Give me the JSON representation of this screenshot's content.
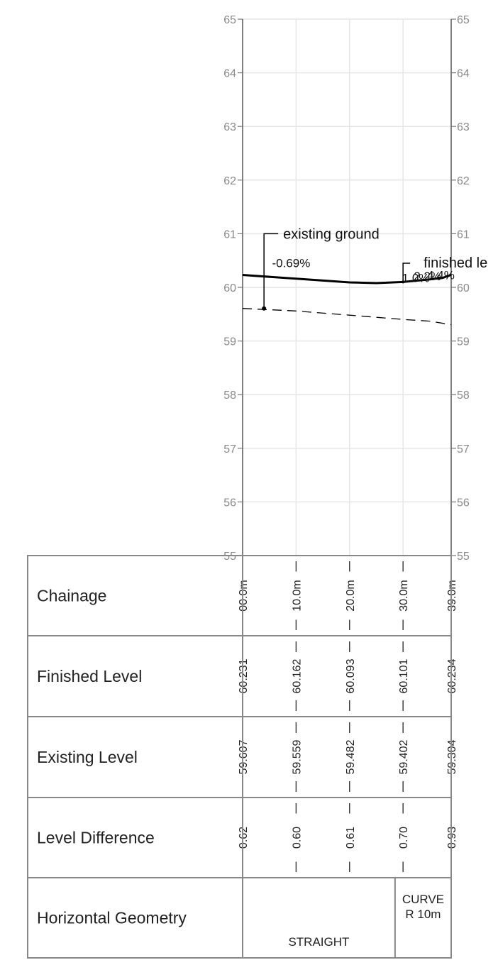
{
  "chart_data": {
    "type": "line",
    "title": "",
    "xlabel": "",
    "ylabel": "",
    "x_range": [
      0,
      39
    ],
    "ylim": [
      55,
      65
    ],
    "y_ticks": [
      55,
      56,
      57,
      58,
      59,
      60,
      61,
      62,
      63,
      64,
      65
    ],
    "grid": true,
    "series": [
      {
        "name": "finished level",
        "style": "solid",
        "color": "#000000",
        "x": [
          0,
          10,
          20,
          25,
          30,
          35,
          37.5,
          39
        ],
        "y": [
          60.231,
          60.162,
          60.093,
          60.08,
          60.101,
          60.15,
          60.18,
          60.234
        ]
      },
      {
        "name": "existing ground",
        "style": "dashed",
        "color": "#000000",
        "x": [
          0,
          10,
          20,
          30,
          35,
          37.5,
          39
        ],
        "y": [
          59.607,
          59.559,
          59.482,
          59.402,
          59.37,
          59.33,
          59.304
        ]
      }
    ],
    "annotations": [
      {
        "id": "existing",
        "text": "existing ground",
        "x": 4,
        "y": 59.607
      },
      {
        "id": "finished",
        "text": "finished le",
        "x": 30,
        "y": 60.101
      }
    ],
    "grade_labels": [
      {
        "text": "-0.69%",
        "x": 5.5,
        "y": 60.3
      },
      {
        "text": "1.0%",
        "x": 29.8,
        "y": 60.02
      },
      {
        "text": "2.2%",
        "x": 32,
        "y": 60.05
      },
      {
        "text": "4.4%",
        "x": 34.5,
        "y": 60.07
      }
    ],
    "profile_table": {
      "stations": [
        0,
        10,
        20,
        30,
        39
      ],
      "rows": [
        {
          "label": "Chainage",
          "values": [
            "00.0m",
            "10.0m",
            "20.0m",
            "30.0m",
            "39.0m"
          ]
        },
        {
          "label": "Finished Level",
          "values": [
            "60.231",
            "60.162",
            "60.093",
            "60.101",
            "60.234"
          ]
        },
        {
          "label": "Existing Level",
          "values": [
            "59.607",
            "59.559",
            "59.482",
            "59.402",
            "59.304"
          ]
        },
        {
          "label": "Level Difference",
          "values": [
            "0.62",
            "0.60",
            "0.61",
            "0.70",
            "0.93"
          ]
        }
      ],
      "horizontal_geometry": {
        "label": "Horizontal Geometry",
        "segments": [
          {
            "text": "STRAIGHT",
            "from": 0,
            "to": 28.5
          },
          {
            "text": "CURVE R 10m",
            "from": 28.5,
            "to": 39
          }
        ]
      }
    }
  }
}
